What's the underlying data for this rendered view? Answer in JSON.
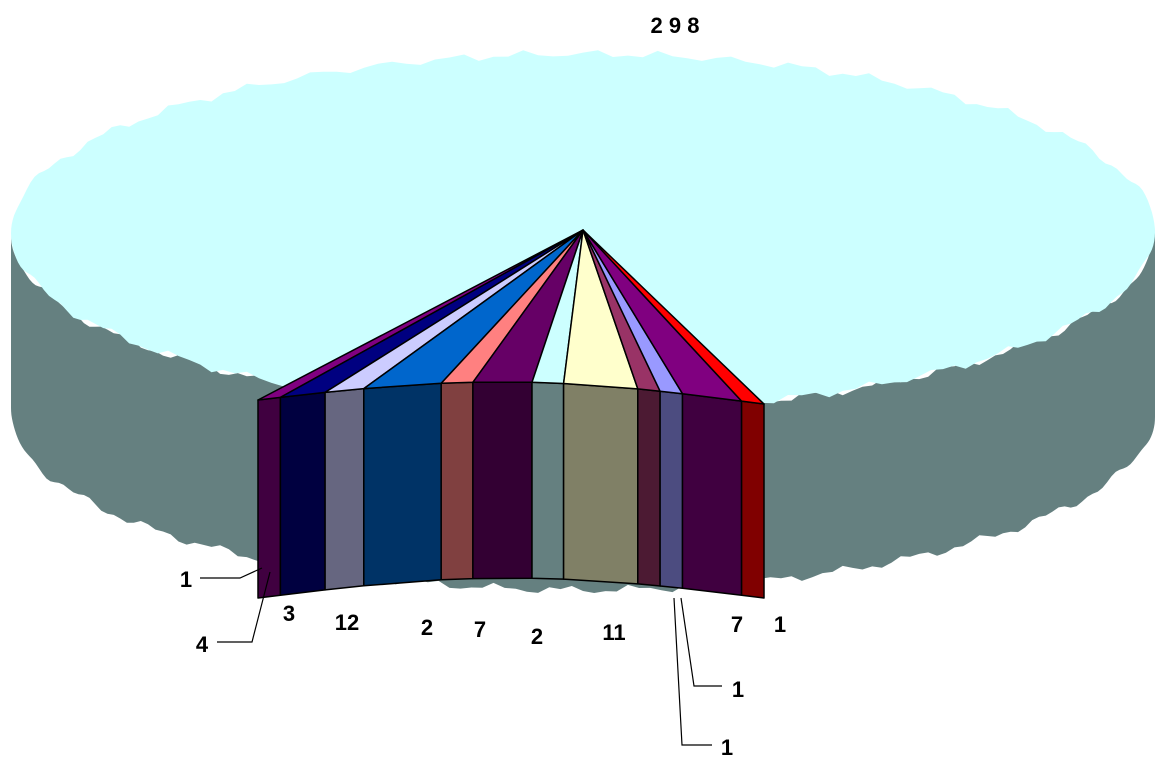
{
  "chart_data": {
    "type": "pie",
    "three_d": true,
    "title": "",
    "legend": "none",
    "slices": [
      {
        "value": 298,
        "label": "2 9 8",
        "color": "#CCFFFF",
        "side_color": "#658080"
      },
      {
        "value": 1,
        "label": "1",
        "color": "#800080",
        "side_color": "#400040"
      },
      {
        "value": 4,
        "label": "4",
        "color": "#000080",
        "side_color": "#000040"
      },
      {
        "value": 3,
        "label": "3",
        "color": "#CCCCFF",
        "side_color": "#666680"
      },
      {
        "value": 12,
        "label": "12",
        "color": "#0066CC",
        "side_color": "#003366"
      },
      {
        "value": 2,
        "label": "2",
        "color": "#FF8080",
        "side_color": "#804040"
      },
      {
        "value": 7,
        "label": "7",
        "color": "#660066",
        "side_color": "#330033"
      },
      {
        "value": 2,
        "label": "2",
        "color": "#CCFFFF",
        "side_color": "#658080"
      },
      {
        "value": 11,
        "label": "11",
        "color": "#FFFFCC",
        "side_color": "#808066"
      },
      {
        "value": 1,
        "label": "1",
        "color": "#993366",
        "side_color": "#4C1A33"
      },
      {
        "value": 1,
        "label": "1",
        "color": "#9999FF",
        "side_color": "#4C4C80"
      },
      {
        "value": 7,
        "label": "7",
        "color": "#800080",
        "side_color": "#400040"
      },
      {
        "value": 1,
        "label": "1",
        "color": "#FF0000",
        "side_color": "#800000"
      }
    ]
  }
}
